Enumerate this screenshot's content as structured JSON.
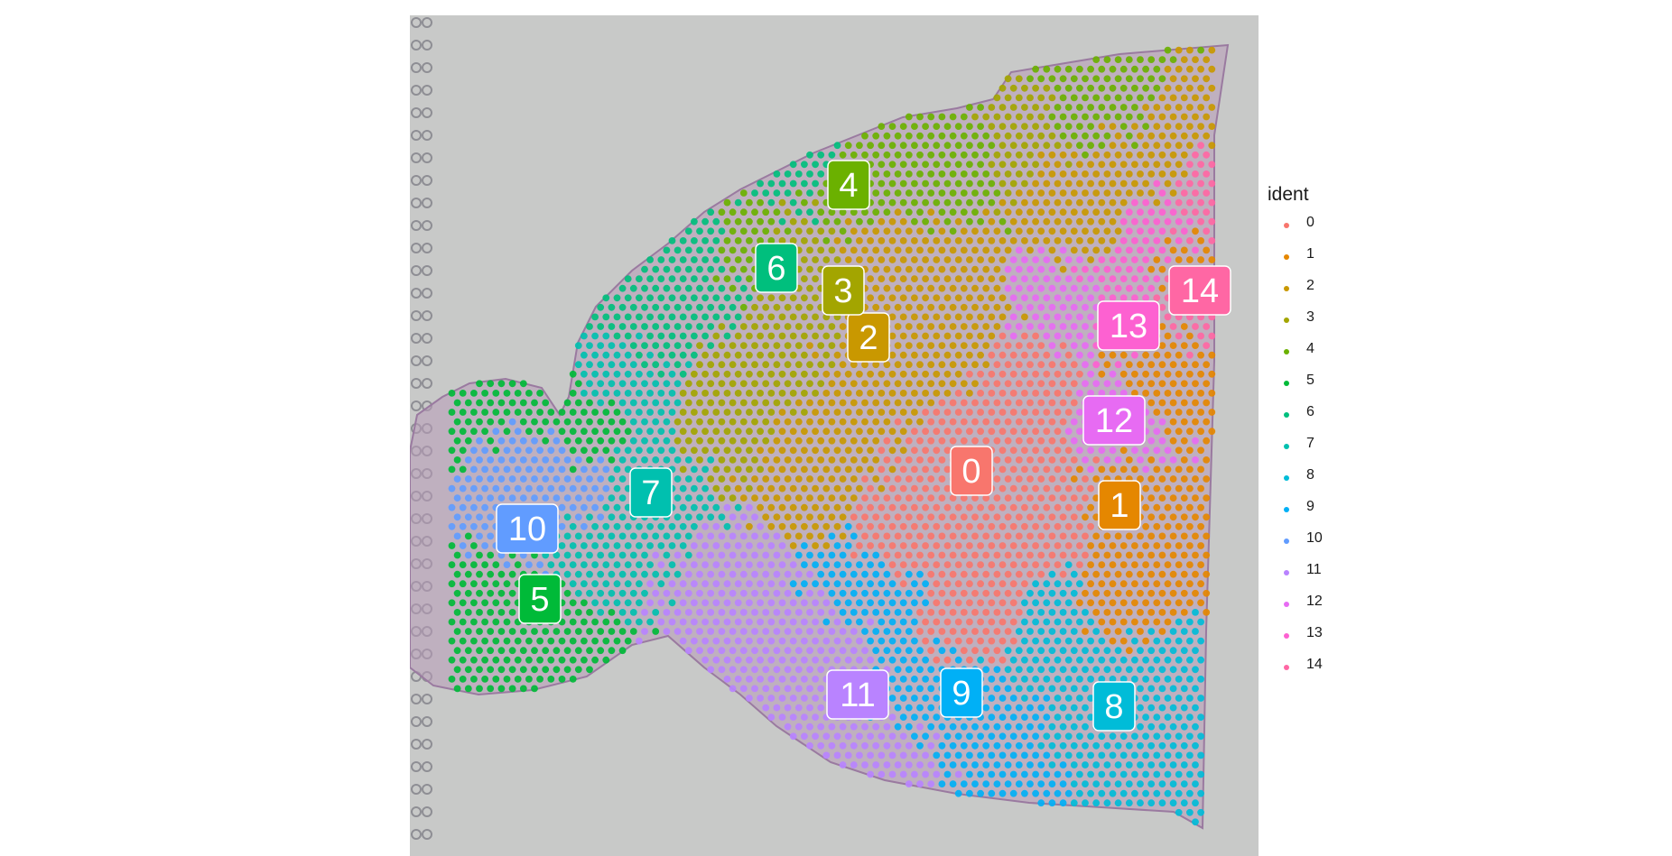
{
  "chart_data": {
    "type": "scatter",
    "subtype": "spatial-dimplot-over-tissue-image",
    "title": "",
    "xlabel": "",
    "ylabel": "",
    "background": "H&E tissue section image",
    "legend": {
      "title": "ident",
      "placement": "right",
      "items": [
        "0",
        "1",
        "2",
        "3",
        "4",
        "5",
        "6",
        "7",
        "8",
        "9",
        "10",
        "11",
        "12",
        "13",
        "14"
      ]
    },
    "clusters": [
      {
        "id": "0",
        "label": "0",
        "color": "#F8766D"
      },
      {
        "id": "1",
        "label": "1",
        "color": "#E58700"
      },
      {
        "id": "2",
        "label": "2",
        "color": "#C99800"
      },
      {
        "id": "3",
        "label": "3",
        "color": "#A3A500"
      },
      {
        "id": "4",
        "label": "4",
        "color": "#6BB100"
      },
      {
        "id": "5",
        "label": "5",
        "color": "#00BA38"
      },
      {
        "id": "6",
        "label": "6",
        "color": "#00BF7D"
      },
      {
        "id": "7",
        "label": "7",
        "color": "#00C0AF"
      },
      {
        "id": "8",
        "label": "8",
        "color": "#00BCD8"
      },
      {
        "id": "9",
        "label": "9",
        "color": "#00B0F6"
      },
      {
        "id": "10",
        "label": "10",
        "color": "#619CFF"
      },
      {
        "id": "11",
        "label": "11",
        "color": "#B983FF"
      },
      {
        "id": "12",
        "label": "12",
        "color": "#E76BF3"
      },
      {
        "id": "13",
        "label": "13",
        "color": "#FD61D1"
      },
      {
        "id": "14",
        "label": "14",
        "color": "#FF67A4"
      }
    ]
  }
}
